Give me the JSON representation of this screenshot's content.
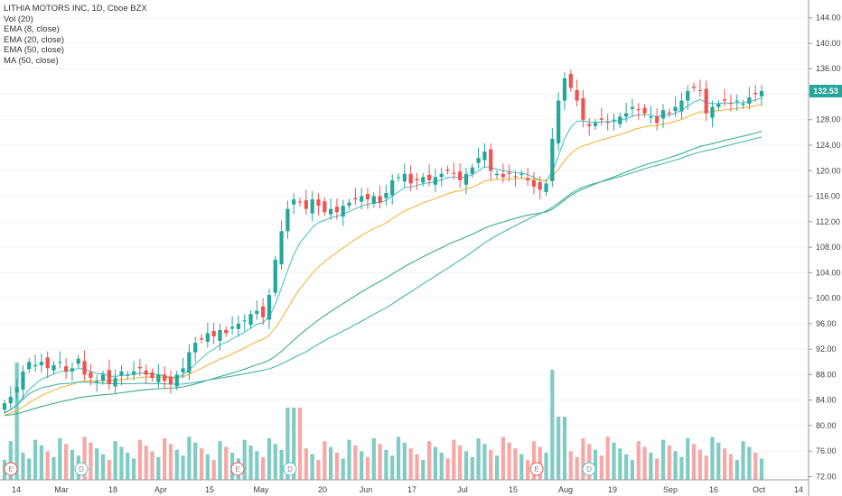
{
  "legend": {
    "title": "LITHIA MOTORS INC, 1D, Cboe BZX",
    "lines": [
      "Vol (20)",
      "EMA (8, close)",
      "EMA (20, close)",
      "EMA (50, close)",
      "MA (50, close)"
    ]
  },
  "last_price_label": "132.53",
  "colors": {
    "up": "#26a69a",
    "down": "#ef5350",
    "vol_up": "#80cbc4",
    "vol_down": "#f7a8a6",
    "ema8": "#4fc3c9",
    "ema20": "#f6b443",
    "ema50": "#3dab8c",
    "ma50": "#48b8a8",
    "event_e": "#ef5350",
    "event_d": "#4fc3c9"
  },
  "chart_data": {
    "type": "candlestick",
    "symbol": "LITHIA MOTORS INC",
    "interval": "1D",
    "exchange": "Cboe BZX",
    "y_ticks": [
      "144.00",
      "140.00",
      "136.00",
      "132.00",
      "128.00",
      "124.00",
      "120.00",
      "116.00",
      "112.00",
      "108.00",
      "104.00",
      "100.00",
      "96.00",
      "92.00",
      "88.00",
      "84.00",
      "80.00",
      "76.00",
      "72.00"
    ],
    "x_ticks": [
      "14",
      "Mar",
      "18",
      "Apr",
      "15",
      "May",
      "20",
      "Jun",
      "17",
      "Jul",
      "15",
      "Aug",
      "19",
      "Sep",
      "16",
      "Oct",
      "14"
    ],
    "ylim": [
      71.5,
      146.5
    ],
    "last_price": 132.53,
    "events": [
      "E",
      "D",
      "E",
      "D",
      "E",
      "D"
    ],
    "ohlc_closes": [
      83.5,
      84.5,
      86,
      88.5,
      90,
      89.5,
      90,
      89,
      89.5,
      90,
      88.5,
      89,
      90.5,
      88,
      87.5,
      87,
      88,
      86.5,
      87.5,
      88.5,
      88,
      88.5,
      89,
      88,
      87.5,
      88,
      87,
      86.5,
      88,
      89,
      91.5,
      93,
      93.5,
      94.5,
      94,
      95,
      94.5,
      95.5,
      96,
      96.5,
      97.5,
      98,
      97,
      100.5,
      106,
      110.5,
      114,
      115.5,
      115,
      114,
      115.5,
      114.5,
      113.5,
      114,
      113.5,
      114.5,
      115,
      115.5,
      116,
      115.5,
      116,
      115,
      116.5,
      118.5,
      119,
      119.5,
      118,
      118.5,
      119,
      118.5,
      119,
      119.5,
      120,
      119.5,
      118.5,
      119.5,
      120.5,
      122,
      123,
      120,
      119.5,
      119,
      119.5,
      119,
      119.5,
      118.5,
      117.5,
      117,
      118,
      125,
      131,
      134.5,
      133,
      131,
      128,
      127,
      127.5,
      128,
      127.5,
      128,
      128.5,
      129,
      130,
      129.5,
      129,
      128.5,
      127.5,
      129.5,
      129,
      130,
      131,
      132.5,
      133,
      132.5,
      129,
      130,
      130.5,
      131,
      130.5,
      131,
      130.5,
      131.5,
      132,
      132.5
    ],
    "volume_series": "Vol (20)",
    "overlays": [
      "EMA (8, close)",
      "EMA (20, close)",
      "EMA (50, close)",
      "MA (50, close)"
    ]
  }
}
